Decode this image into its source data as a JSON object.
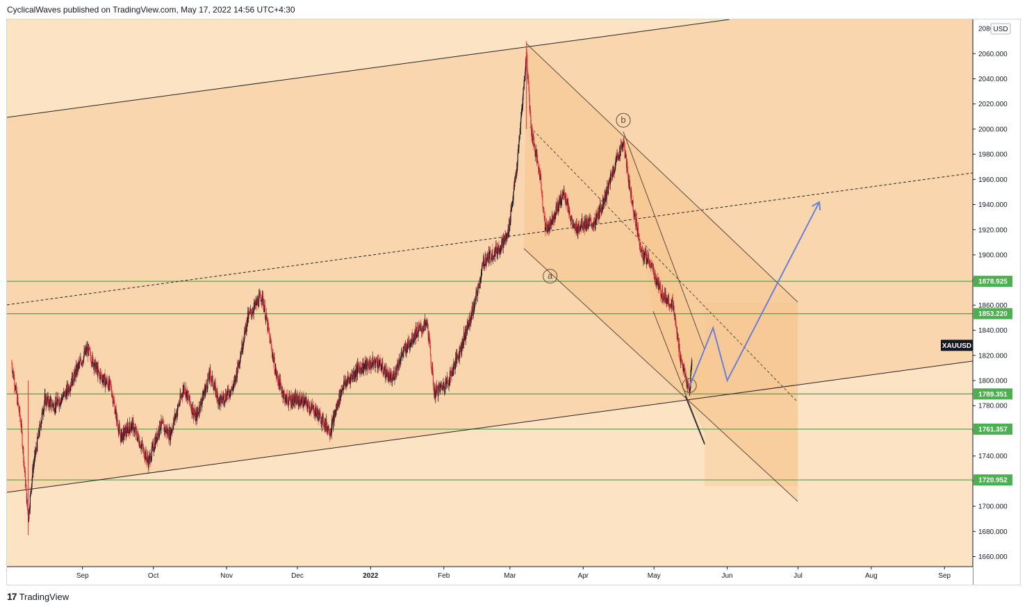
{
  "header": {
    "text": "CyclicalWaves published on TradingView.com, May 17, 2022 14:56 UTC+4:30"
  },
  "footer": {
    "logo": "17",
    "brand": "TradingView"
  },
  "colors": {
    "background": "#fbe3c4",
    "channel_fill": "#f8d2a6",
    "down_fill": "#f6c489",
    "candle_up": "#131722",
    "candle_down": "#e8333d",
    "level_line": "#4caf50",
    "level_badge": "#4caf50",
    "projection": "#6a7fd6",
    "trend_line": "#222222"
  },
  "chart_data": {
    "type": "candlestick",
    "symbol": "XAUUSD",
    "currency": "USD",
    "ylim": [
      1652,
      2085
    ],
    "y_ticks": [
      1660,
      1680,
      1700,
      1720,
      1740,
      1760,
      1780,
      1800,
      1820,
      1840,
      1860,
      1880,
      1900,
      1920,
      1940,
      1960,
      1980,
      2000,
      2020,
      2040,
      2060
    ],
    "y_tick_labels": [
      "1660.000",
      "1680.000",
      "1700.000",
      "1720.000",
      "1740.000",
      "1760.000",
      "1780.000",
      "1800.000",
      "1820.000",
      "1840.000",
      "1860.000",
      "1880.000",
      "1900.000",
      "1920.000",
      "1940.000",
      "1960.000",
      "1980.000",
      "2000.000",
      "2020.000",
      "2040.000",
      "2060.000"
    ],
    "top_tick_partial": "2080.000",
    "x_ticks": [
      {
        "label": "Sep",
        "date": "2021-09-01"
      },
      {
        "label": "Oct",
        "date": "2021-10-01"
      },
      {
        "label": "Nov",
        "date": "2021-11-01"
      },
      {
        "label": "Dec",
        "date": "2021-12-01"
      },
      {
        "label": "2022",
        "date": "2022-01-01"
      },
      {
        "label": "Feb",
        "date": "2022-02-01"
      },
      {
        "label": "Mar",
        "date": "2022-03-01"
      },
      {
        "label": "Apr",
        "date": "2022-04-01"
      },
      {
        "label": "May",
        "date": "2022-05-01"
      },
      {
        "label": "Jun",
        "date": "2022-06-01"
      },
      {
        "label": "Jul",
        "date": "2022-07-01"
      },
      {
        "label": "Aug",
        "date": "2022-08-01"
      },
      {
        "label": "Sep",
        "date": "2022-09-01"
      }
    ],
    "levels": [
      {
        "value": 1878.925,
        "label": "1878.925"
      },
      {
        "value": 1853.22,
        "label": "1853.220"
      },
      {
        "value": 1789.351,
        "label": "1789.351"
      },
      {
        "value": 1761.357,
        "label": "1761.357"
      },
      {
        "value": 1720.952,
        "label": "1720.952"
      }
    ],
    "price_path": [
      [
        "2021-08-02",
        1814
      ],
      [
        "2021-08-06",
        1765
      ],
      [
        "2021-08-09",
        1690
      ],
      [
        "2021-08-11",
        1730
      ],
      [
        "2021-08-16",
        1785
      ],
      [
        "2021-08-20",
        1780
      ],
      [
        "2021-08-25",
        1790
      ],
      [
        "2021-08-30",
        1810
      ],
      [
        "2021-09-03",
        1825
      ],
      [
        "2021-09-08",
        1805
      ],
      [
        "2021-09-13",
        1795
      ],
      [
        "2021-09-17",
        1755
      ],
      [
        "2021-09-22",
        1765
      ],
      [
        "2021-09-29",
        1735
      ],
      [
        "2021-10-04",
        1765
      ],
      [
        "2021-10-08",
        1757
      ],
      [
        "2021-10-14",
        1795
      ],
      [
        "2021-10-19",
        1770
      ],
      [
        "2021-10-25",
        1805
      ],
      [
        "2021-10-29",
        1783
      ],
      [
        "2021-11-04",
        1795
      ],
      [
        "2021-11-10",
        1850
      ],
      [
        "2021-11-16",
        1868
      ],
      [
        "2021-11-22",
        1805
      ],
      [
        "2021-11-26",
        1785
      ],
      [
        "2021-12-03",
        1784
      ],
      [
        "2021-12-09",
        1775
      ],
      [
        "2021-12-15",
        1760
      ],
      [
        "2021-12-20",
        1795
      ],
      [
        "2021-12-27",
        1810
      ],
      [
        "2022-01-04",
        1815
      ],
      [
        "2022-01-10",
        1800
      ],
      [
        "2022-01-14",
        1820
      ],
      [
        "2022-01-20",
        1838
      ],
      [
        "2022-01-25",
        1845
      ],
      [
        "2022-01-28",
        1790
      ],
      [
        "2022-02-03",
        1800
      ],
      [
        "2022-02-08",
        1825
      ],
      [
        "2022-02-14",
        1860
      ],
      [
        "2022-02-18",
        1895
      ],
      [
        "2022-02-24",
        1905
      ],
      [
        "2022-02-28",
        1915
      ],
      [
        "2022-03-04",
        1970
      ],
      [
        "2022-03-08",
        2060
      ],
      [
        "2022-03-10",
        2000
      ],
      [
        "2022-03-14",
        1960
      ],
      [
        "2022-03-16",
        1920
      ],
      [
        "2022-03-18",
        1925
      ],
      [
        "2022-03-24",
        1950
      ],
      [
        "2022-03-28",
        1920
      ],
      [
        "2022-04-01",
        1925
      ],
      [
        "2022-04-06",
        1925
      ],
      [
        "2022-04-11",
        1950
      ],
      [
        "2022-04-15",
        1975
      ],
      [
        "2022-04-18",
        1990
      ],
      [
        "2022-04-21",
        1950
      ],
      [
        "2022-04-26",
        1900
      ],
      [
        "2022-04-29",
        1895
      ],
      [
        "2022-05-04",
        1870
      ],
      [
        "2022-05-09",
        1860
      ],
      [
        "2022-05-12",
        1820
      ],
      [
        "2022-05-16",
        1790
      ],
      [
        "2022-05-17",
        1815
      ]
    ],
    "wave_labels": [
      {
        "text": "b",
        "date": "2022-04-18",
        "value": 2007
      },
      {
        "text": "a",
        "date": "2022-03-18",
        "value": 1883
      },
      {
        "text": "c",
        "date": "2022-05-16",
        "value": 1796
      }
    ],
    "projection_path": [
      [
        "2022-05-16",
        1795
      ],
      [
        "2022-05-26",
        1842
      ],
      [
        "2022-06-01",
        1800
      ],
      [
        "2022-07-10",
        1942
      ]
    ]
  }
}
